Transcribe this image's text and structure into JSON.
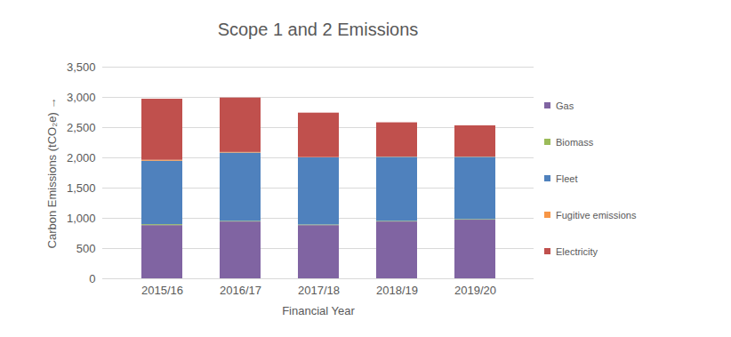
{
  "chart_data": {
    "type": "bar",
    "stacked": true,
    "title": "Scope 1 and 2 Emissions",
    "x_label": "Financial Year",
    "y_label": "Carbon Emissions (tCO₂e)",
    "categories": [
      "2015/16",
      "2016/17",
      "2017/18",
      "2018/19",
      "2019/20"
    ],
    "series": [
      {
        "name": "Gas",
        "color": "#8064a2",
        "values": [
          880,
          940,
          880,
          940,
          970
        ]
      },
      {
        "name": "Biomass",
        "color": "#9bbb59",
        "values": [
          15,
          10,
          10,
          10,
          10
        ]
      },
      {
        "name": "Fleet",
        "color": "#4f81bd",
        "values": [
          1050,
          1130,
          1110,
          1060,
          1030
        ]
      },
      {
        "name": "Fugitive emissions",
        "color": "#f79646",
        "values": [
          15,
          10,
          5,
          5,
          5
        ]
      },
      {
        "name": "Electricity",
        "color": "#c0504d",
        "values": [
          1010,
          900,
          735,
          565,
          515
        ]
      }
    ],
    "ylim": [
      0,
      3500
    ],
    "yticks": [
      0,
      500,
      {
        "value": 1000,
        "label": "1,000"
      },
      {
        "value": 1500,
        "label": "1,500"
      },
      {
        "value": 2000,
        "label": "2,000"
      },
      {
        "value": 2500,
        "label": "2,500"
      },
      {
        "value": 3000,
        "label": "3,000"
      },
      {
        "value": 3500,
        "label": "3,500"
      }
    ],
    "grid": true,
    "legend": "right"
  }
}
